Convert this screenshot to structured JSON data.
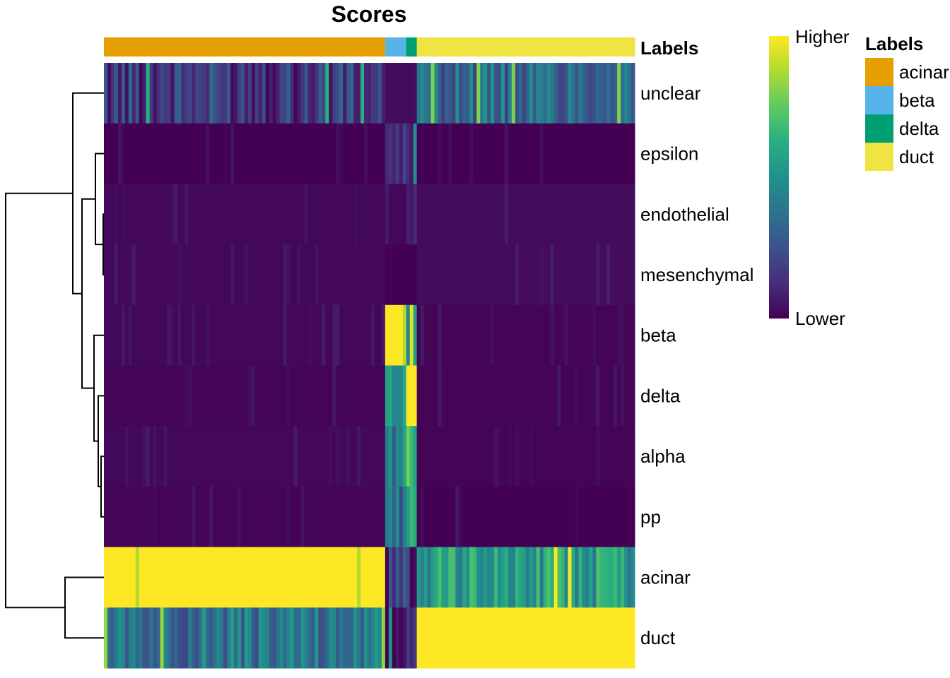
{
  "chart_data": {
    "type": "heatmap",
    "title": "Scores",
    "annotation_name": "Labels",
    "rows": [
      "unclear",
      "epsilon",
      "endothelial",
      "mesenchymal",
      "beta",
      "delta",
      "alpha",
      "pp",
      "acinar",
      "duct"
    ],
    "column_groups": [
      {
        "label": "acinar",
        "count": 80
      },
      {
        "label": "beta",
        "count": 6
      },
      {
        "label": "delta",
        "count": 3
      },
      {
        "label": "duct",
        "count": 62
      }
    ],
    "group_scores": {
      "unclear": {
        "acinar": 0.18,
        "beta": 0.03,
        "delta": 0.03,
        "duct": 0.35
      },
      "epsilon": {
        "acinar": 0.0,
        "beta": 0.12,
        "delta": 0.05,
        "duct": 0.0
      },
      "endothelial": {
        "acinar": 0.02,
        "beta": 0.02,
        "delta": 0.08,
        "duct": 0.03
      },
      "mesenchymal": {
        "acinar": 0.02,
        "beta": 0.0,
        "delta": 0.0,
        "duct": 0.03
      },
      "beta": {
        "acinar": 0.02,
        "beta": 1.0,
        "delta": 0.5,
        "duct": 0.01
      },
      "delta": {
        "acinar": 0.01,
        "beta": 0.58,
        "delta": 1.0,
        "duct": 0.01
      },
      "alpha": {
        "acinar": 0.02,
        "beta": 0.42,
        "delta": 0.7,
        "duct": 0.01
      },
      "pp": {
        "acinar": 0.01,
        "beta": 0.38,
        "delta": 0.55,
        "duct": 0.0
      },
      "acinar": {
        "acinar": 1.0,
        "beta": 0.15,
        "delta": 0.15,
        "duct": 0.55
      },
      "duct": {
        "acinar": 0.38,
        "beta": 0.05,
        "delta": 0.05,
        "duct": 1.0
      }
    },
    "dendrogram": {
      "merges": [
        [
          "endothelial",
          "mesenchymal"
        ],
        [
          "alpha",
          "pp"
        ],
        [
          "delta",
          "alpha+pp"
        ],
        [
          "beta",
          "delta+alpha+pp"
        ],
        [
          "epsilon",
          "endothelial+mesenchymal"
        ],
        [
          "epsilon+endothelial+mesenchymal",
          "beta+delta+alpha+pp"
        ],
        [
          "unclear",
          "epsilon+endothelial+mesenchymal+beta+delta+alpha+pp"
        ],
        [
          "acinar",
          "duct"
        ],
        [
          "unclear+...+pp",
          "acinar+duct"
        ]
      ]
    },
    "colorbar": {
      "high_label": "Higher",
      "low_label": "Lower"
    },
    "legend": {
      "title": "Labels",
      "entries": [
        {
          "label": "acinar",
          "color": "#E69F00"
        },
        {
          "label": "beta",
          "color": "#56B4E9"
        },
        {
          "label": "delta",
          "color": "#009E73"
        },
        {
          "label": "duct",
          "color": "#F0E442"
        }
      ]
    },
    "colormap": "viridis",
    "colormap_low": "#440154",
    "colormap_high": "#FDE725"
  }
}
